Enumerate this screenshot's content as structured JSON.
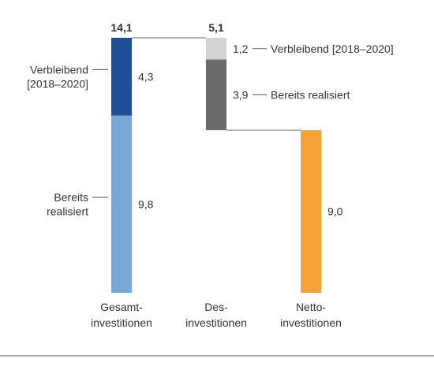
{
  "chart_data": {
    "type": "bar",
    "categories": [
      {
        "line1": "Gesamt-",
        "line2": "investitionen"
      },
      {
        "line1": "Des-",
        "line2": "investitionen"
      },
      {
        "line1": "Netto-",
        "line2": "investitionen"
      }
    ],
    "bars": [
      {
        "total": 14.1,
        "total_label": "14,1",
        "segments": [
          {
            "value": 9.8,
            "value_label": "9,8",
            "color": "#7aa8d6",
            "label_lines": [
              "Bereits",
              "realisiert"
            ],
            "label_side": "left"
          },
          {
            "value": 4.3,
            "value_label": "4,3",
            "color": "#1f4e96",
            "label_lines": [
              "Verbleibend",
              "[2018–2020]"
            ],
            "label_side": "left"
          }
        ]
      },
      {
        "total": 5.1,
        "total_label": "5,1",
        "segments": [
          {
            "value": 3.9,
            "value_label": "3,9",
            "color": "#6b6b6b",
            "label_lines": [
              "Bereits realisiert"
            ],
            "label_side": "right"
          },
          {
            "value": 1.2,
            "value_label": "1,2",
            "color": "#d3d3d3",
            "label_lines": [
              "Verbleibend [2018–2020]"
            ],
            "label_side": "right"
          }
        ]
      },
      {
        "total": 9.0,
        "total_label": "",
        "segments": [
          {
            "value": 9.0,
            "value_label": "9,0",
            "color": "#f4a234",
            "label_lines": [],
            "label_side": "none"
          }
        ]
      }
    ],
    "ylim": [
      0,
      14.1
    ],
    "grid": false,
    "legend": "none"
  }
}
